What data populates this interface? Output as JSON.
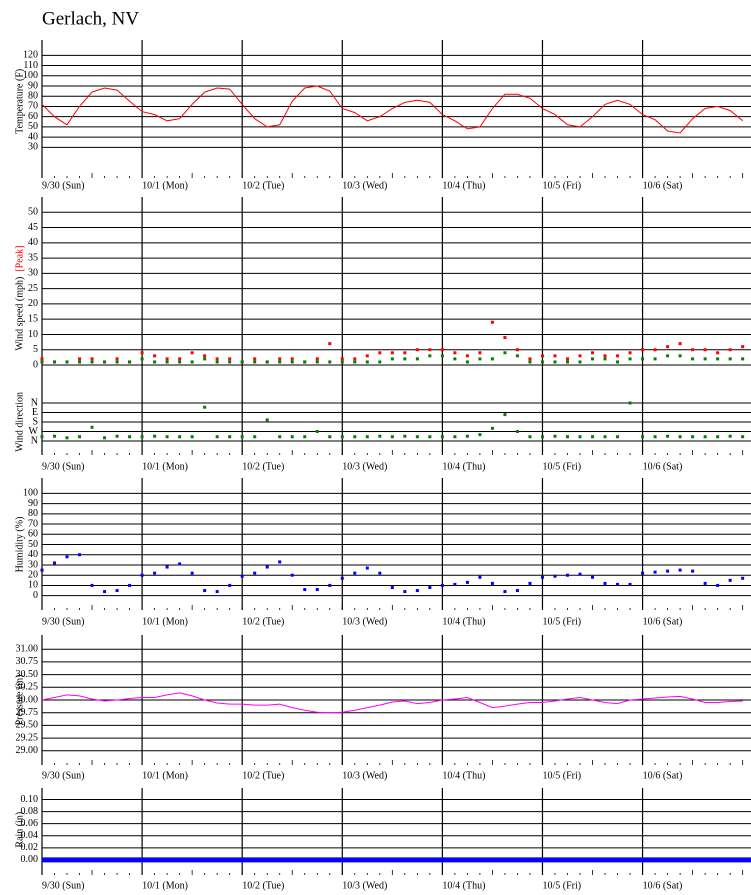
{
  "title": "Gerlach, NV",
  "chart_data": [
    {
      "type": "line",
      "ylabel": "Temperature (F)",
      "x": [
        0,
        3,
        6,
        9,
        12,
        15,
        18,
        21,
        24,
        27,
        30,
        33,
        36,
        39,
        42,
        45,
        48,
        51,
        54,
        57,
        60,
        63,
        66,
        69,
        72,
        75,
        78,
        81,
        84,
        87,
        90,
        93,
        96,
        99,
        102,
        105,
        108,
        111,
        114,
        117,
        120,
        123,
        126,
        129,
        132,
        135,
        138,
        141,
        144,
        147,
        150,
        153,
        156,
        159,
        162,
        165,
        168
      ],
      "series": [
        {
          "color": "#ff0000",
          "values": [
            72,
            60,
            52,
            70,
            84,
            88,
            86,
            75,
            65,
            62,
            56,
            58,
            72,
            84,
            88,
            87,
            72,
            58,
            50,
            52,
            75,
            88,
            90,
            85,
            68,
            64,
            56,
            60,
            68,
            74,
            76,
            74,
            62,
            56,
            48,
            50,
            68,
            82,
            82,
            78,
            68,
            62,
            52,
            50,
            60,
            72,
            76,
            72,
            62,
            57,
            46,
            44,
            58,
            68,
            70,
            66,
            56
          ]
        }
      ],
      "xlim": [
        0,
        170
      ],
      "ylim": [
        0,
        135
      ],
      "yticks": [
        30,
        40,
        50,
        60,
        70,
        80,
        90,
        100,
        110,
        120
      ],
      "xticks": [
        {
          "value": 0,
          "label": "9/30 (Sun)"
        },
        {
          "value": 24,
          "label": "10/1 (Mon)"
        },
        {
          "value": 48,
          "label": "10/2 (Tue)"
        },
        {
          "value": 72,
          "label": "10/3 (Wed)"
        },
        {
          "value": 96,
          "label": "10/4 (Thu)"
        },
        {
          "value": 120,
          "label": "10/5 (Fri)"
        },
        {
          "value": 144,
          "label": "10/6 (Sat)"
        }
      ],
      "grid": true,
      "linewidth": 1
    },
    {
      "type": "scatter",
      "ylabel": "Wind speed (mph)",
      "x": [
        0,
        3,
        6,
        9,
        12,
        15,
        18,
        21,
        24,
        27,
        30,
        33,
        36,
        39,
        42,
        45,
        48,
        51,
        54,
        57,
        60,
        63,
        66,
        69,
        72,
        75,
        78,
        81,
        84,
        87,
        90,
        93,
        96,
        99,
        102,
        105,
        108,
        111,
        114,
        117,
        120,
        123,
        126,
        129,
        132,
        135,
        138,
        141,
        144,
        147,
        150,
        153,
        156,
        159,
        162,
        165,
        168
      ],
      "series": [
        {
          "name": "[Peak]",
          "color": "#ff0000",
          "values": [
            2,
            1,
            1,
            2,
            2,
            1,
            2,
            1,
            4,
            3,
            2,
            2,
            4,
            3,
            2,
            2,
            1,
            2,
            1,
            2,
            2,
            1,
            2,
            7,
            2,
            2,
            3,
            4,
            4,
            4,
            5,
            5,
            5,
            4,
            3,
            4,
            14,
            9,
            5,
            2,
            3,
            3,
            2,
            3,
            4,
            3,
            3,
            4,
            5,
            5,
            6,
            7,
            5,
            5,
            4,
            5,
            6
          ]
        },
        {
          "color": "#008000",
          "values": [
            1,
            1,
            1,
            1,
            1,
            1,
            1,
            1,
            2,
            1,
            1,
            1,
            1,
            2,
            1,
            1,
            1,
            1,
            1,
            1,
            1,
            1,
            1,
            1,
            1,
            1,
            1,
            1,
            2,
            2,
            2,
            3,
            3,
            2,
            1,
            2,
            2,
            4,
            3,
            1,
            1,
            1,
            1,
            1,
            2,
            2,
            1,
            2,
            2,
            2,
            3,
            3,
            2,
            2,
            2,
            2,
            2
          ]
        }
      ],
      "xlim": [
        0,
        170
      ],
      "ylim": [
        0,
        55
      ],
      "yticks": [
        0,
        5,
        10,
        15,
        20,
        25,
        30,
        35,
        40,
        45,
        50
      ],
      "grid": true
    },
    {
      "type": "scatter",
      "ylabel": "Wind direction",
      "x": [
        0,
        3,
        6,
        9,
        12,
        15,
        18,
        21,
        24,
        27,
        30,
        33,
        36,
        39,
        42,
        45,
        48,
        51,
        54,
        57,
        60,
        63,
        66,
        69,
        72,
        75,
        78,
        81,
        84,
        87,
        90,
        93,
        96,
        99,
        102,
        105,
        108,
        111,
        114,
        117,
        120,
        123,
        126,
        129,
        132,
        135,
        138,
        141,
        144,
        147,
        150,
        153,
        156,
        159,
        162,
        165,
        168
      ],
      "series": [
        {
          "color": "#008000",
          "values": [
            40,
            45,
            30,
            40,
            130,
            30,
            45,
            40,
            40,
            45,
            40,
            40,
            40,
            320,
            40,
            40,
            40,
            40,
            200,
            40,
            40,
            40,
            90,
            40,
            40,
            40,
            40,
            45,
            40,
            45,
            40,
            40,
            40,
            40,
            45,
            60,
            120,
            250,
            90,
            40,
            40,
            45,
            40,
            40,
            40,
            40,
            40,
            360,
            40,
            40,
            45,
            40,
            40,
            40,
            40,
            45,
            40
          ]
        }
      ],
      "xlim": [
        0,
        170
      ],
      "ylim": [
        -133,
        720
      ],
      "yticks": [
        {
          "value": 0,
          "label": "N"
        },
        {
          "value": 90,
          "label": "W"
        },
        {
          "value": 180,
          "label": "S"
        },
        {
          "value": 270,
          "label": "E"
        },
        {
          "value": 360,
          "label": "N"
        }
      ],
      "xticks": [
        {
          "value": 0,
          "label": "9/30 (Sun)"
        },
        {
          "value": 24,
          "label": "10/1 (Mon)"
        },
        {
          "value": 48,
          "label": "10/2 (Tue)"
        },
        {
          "value": 72,
          "label": "10/3 (Wed)"
        },
        {
          "value": 96,
          "label": "10/4 (Thu)"
        },
        {
          "value": 120,
          "label": "10/5 (Fri)"
        },
        {
          "value": 144,
          "label": "10/6 (Sat)"
        }
      ],
      "grid": true
    },
    {
      "type": "scatter",
      "ylabel": "Humidity (%)",
      "x": [
        0,
        3,
        6,
        9,
        12,
        15,
        18,
        21,
        24,
        27,
        30,
        33,
        36,
        39,
        42,
        45,
        48,
        51,
        54,
        57,
        60,
        63,
        66,
        69,
        72,
        75,
        78,
        81,
        84,
        87,
        90,
        93,
        96,
        99,
        102,
        105,
        108,
        111,
        114,
        117,
        120,
        123,
        126,
        129,
        132,
        135,
        138,
        141,
        144,
        147,
        150,
        153,
        156,
        159,
        162,
        165,
        168
      ],
      "series": [
        {
          "color": "#0000ff",
          "values": [
            25,
            32,
            38,
            40,
            10,
            4,
            5,
            10,
            20,
            22,
            28,
            31,
            22,
            5,
            4,
            10,
            19,
            22,
            28,
            33,
            20,
            6,
            6,
            10,
            17,
            22,
            27,
            22,
            8,
            4,
            5,
            8,
            10,
            11,
            13,
            18,
            12,
            4,
            5,
            12,
            18,
            19,
            20,
            21,
            18,
            12,
            11,
            11,
            22,
            23,
            24,
            25,
            24,
            12,
            10,
            15,
            17
          ]
        }
      ],
      "xlim": [
        0,
        170
      ],
      "ylim": [
        -14,
        115
      ],
      "yticks": [
        0,
        10,
        20,
        30,
        40,
        50,
        60,
        70,
        80,
        90,
        100
      ],
      "xticks": [
        {
          "value": 0,
          "label": "9/30 (Sun)"
        },
        {
          "value": 24,
          "label": "10/1 (Mon)"
        },
        {
          "value": 48,
          "label": "10/2 (Tue)"
        },
        {
          "value": 72,
          "label": "10/3 (Wed)"
        },
        {
          "value": 96,
          "label": "10/4 (Thu)"
        },
        {
          "value": 120,
          "label": "10/5 (Fri)"
        },
        {
          "value": 144,
          "label": "10/6 (Sat)"
        }
      ],
      "grid": true
    },
    {
      "type": "line",
      "ylabel": "Pressure (in)",
      "x": [
        0,
        3,
        6,
        9,
        12,
        15,
        18,
        21,
        24,
        27,
        30,
        33,
        36,
        39,
        42,
        45,
        48,
        51,
        54,
        57,
        60,
        63,
        66,
        69,
        72,
        75,
        78,
        81,
        84,
        87,
        90,
        93,
        96,
        99,
        102,
        105,
        108,
        111,
        114,
        117,
        120,
        123,
        126,
        129,
        132,
        135,
        138,
        141,
        144,
        147,
        150,
        153,
        156,
        159,
        162,
        165,
        168
      ],
      "series": [
        {
          "color": "#ff00ff",
          "values": [
            30.0,
            30.05,
            30.1,
            30.08,
            30.02,
            29.98,
            30.0,
            30.03,
            30.05,
            30.05,
            30.1,
            30.14,
            30.08,
            30.0,
            29.94,
            29.92,
            29.92,
            29.9,
            29.9,
            29.92,
            29.85,
            29.8,
            29.76,
            29.75,
            29.76,
            29.8,
            29.85,
            29.9,
            29.96,
            29.98,
            29.93,
            29.95,
            30.0,
            30.02,
            30.05,
            29.95,
            29.85,
            29.88,
            29.92,
            29.95,
            29.95,
            29.98,
            30.02,
            30.05,
            30.0,
            29.95,
            29.93,
            30.0,
            30.02,
            30.04,
            30.06,
            30.07,
            30.02,
            29.95,
            29.95,
            29.97,
            29.98
          ]
        }
      ],
      "xlim": [
        0,
        170
      ],
      "ylim": [
        28.72,
        31.28
      ],
      "yticks": [
        {
          "value": 29,
          "label": "29.00"
        },
        {
          "value": 29.25,
          "label": "29.25"
        },
        {
          "value": 29.5,
          "label": "29.50"
        },
        {
          "value": 29.75,
          "label": "29.75"
        },
        {
          "value": 30,
          "label": "30.00"
        },
        {
          "value": 30.25,
          "label": "30.25"
        },
        {
          "value": 30.5,
          "label": "30.50"
        },
        {
          "value": 30.75,
          "label": "30.75"
        },
        {
          "value": 31,
          "label": "31.00"
        }
      ],
      "xticks": [
        {
          "value": 0,
          "label": "9/30 (Sun)"
        },
        {
          "value": 24,
          "label": "10/1 (Mon)"
        },
        {
          "value": 48,
          "label": "10/2 (Tue)"
        },
        {
          "value": 72,
          "label": "10/3 (Wed)"
        },
        {
          "value": 96,
          "label": "10/4 (Thu)"
        },
        {
          "value": 120,
          "label": "10/5 (Fri)"
        },
        {
          "value": 144,
          "label": "10/6 (Sat)"
        }
      ],
      "grid": true,
      "linewidth": 1
    },
    {
      "type": "line",
      "ylabel": "Rain (in)",
      "x": [
        0,
        170
      ],
      "series": [
        {
          "color": "#0000ff",
          "values": [
            0,
            0
          ]
        }
      ],
      "xlim": [
        0,
        170
      ],
      "ylim": [
        -0.025,
        0.119
      ],
      "yticks": [
        {
          "value": 0,
          "label": "0.00"
        },
        {
          "value": 0.02,
          "label": "0.02"
        },
        {
          "value": 0.04,
          "label": "0.04"
        },
        {
          "value": 0.06,
          "label": "0.06"
        },
        {
          "value": 0.08,
          "label": "0.08"
        },
        {
          "value": 0.1,
          "label": "0.10"
        }
      ],
      "xticks": [
        {
          "value": 0,
          "label": "9/30 (Sun)"
        },
        {
          "value": 24,
          "label": "10/1 (Mon)"
        },
        {
          "value": 48,
          "label": "10/2 (Tue)"
        },
        {
          "value": 72,
          "label": "10/3 (Wed)"
        },
        {
          "value": 96,
          "label": "10/4 (Thu)"
        },
        {
          "value": 120,
          "label": "10/5 (Fri)"
        },
        {
          "value": 144,
          "label": "10/6 (Sat)"
        }
      ],
      "grid": true,
      "linewidth": 5
    }
  ]
}
